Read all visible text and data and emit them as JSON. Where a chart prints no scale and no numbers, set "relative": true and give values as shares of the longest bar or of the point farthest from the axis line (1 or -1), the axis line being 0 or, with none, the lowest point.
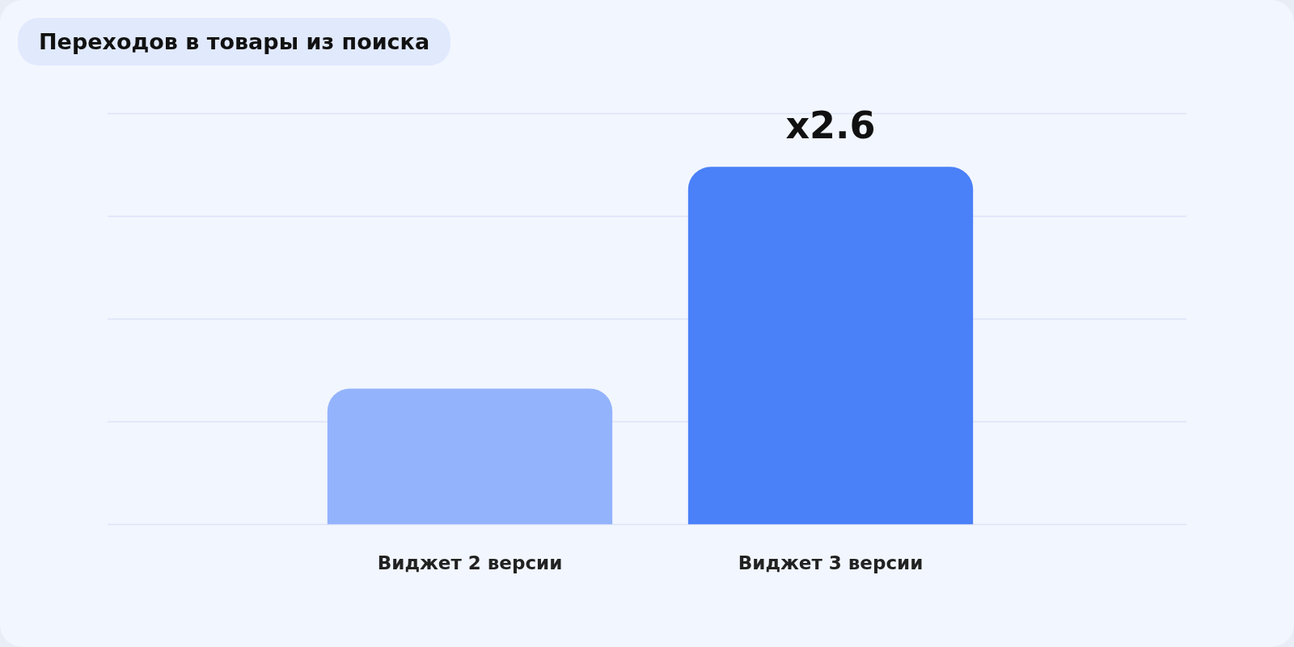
{
  "chart_data": {
    "type": "bar",
    "title": "Переходов в товары из поиска",
    "relative": true,
    "grid": "y",
    "categories": [
      "Виджет 2 версии",
      "Виджет 3 версии"
    ],
    "values": [
      0.38,
      1
    ],
    "colors": [
      "#93b3fc",
      "#4a80f8"
    ],
    "annotations": [
      {
        "text": "x2.6",
        "x": "Виджет 3 версии",
        "y": 1
      }
    ]
  }
}
